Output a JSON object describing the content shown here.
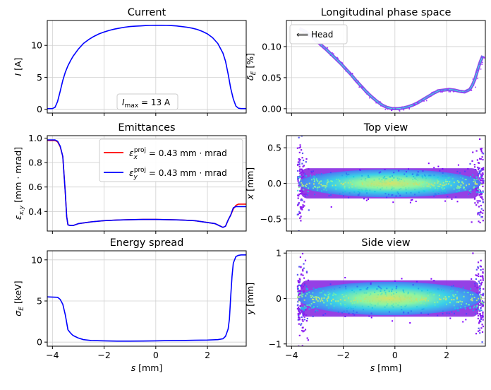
{
  "chart_data": [
    {
      "id": "current",
      "type": "line",
      "title": "Current",
      "ylabel": "I [A]",
      "xlabel": "",
      "xlim": [
        -4.2,
        3.5
      ],
      "ylim": [
        -0.6,
        13.9
      ],
      "xticks": [
        -4,
        -2,
        0,
        2
      ],
      "yticks": [
        0,
        5,
        10
      ],
      "show_xtick_labels": false,
      "grid": true,
      "annotation": "I_max = 13 A",
      "series": [
        {
          "color": "#0000ff",
          "x": [
            -4.2,
            -4.0,
            -3.9,
            -3.8,
            -3.7,
            -3.6,
            -3.5,
            -3.4,
            -3.3,
            -3.2,
            -3.0,
            -2.8,
            -2.6,
            -2.4,
            -2.2,
            -2.0,
            -1.8,
            -1.6,
            -1.4,
            -1.2,
            -1.0,
            -0.8,
            -0.6,
            -0.4,
            -0.2,
            0.0,
            0.2,
            0.4,
            0.6,
            0.8,
            1.0,
            1.2,
            1.4,
            1.6,
            1.8,
            2.0,
            2.2,
            2.4,
            2.6,
            2.7,
            2.8,
            2.9,
            3.0,
            3.1,
            3.2,
            3.3,
            3.4,
            3.5
          ],
          "y": [
            0.1,
            0.1,
            0.3,
            1.2,
            2.8,
            4.5,
            5.8,
            6.8,
            7.6,
            8.3,
            9.4,
            10.3,
            10.9,
            11.4,
            11.8,
            12.1,
            12.35,
            12.55,
            12.7,
            12.85,
            12.95,
            13.0,
            13.05,
            13.1,
            13.13,
            13.15,
            13.15,
            13.13,
            13.1,
            13.05,
            12.95,
            12.85,
            12.7,
            12.5,
            12.2,
            11.8,
            11.2,
            10.3,
            8.8,
            7.5,
            5.5,
            3.3,
            1.6,
            0.5,
            0.15,
            0.1,
            0.1,
            0.1
          ]
        }
      ]
    },
    {
      "id": "lps",
      "type": "scatter",
      "title": "Longitudinal phase space",
      "ylabel": "δ_E [%]",
      "xlabel": "",
      "xlim": [
        -4.2,
        3.5
      ],
      "ylim": [
        -0.007,
        0.142
      ],
      "xticks": [
        -4,
        -2,
        0,
        2
      ],
      "yticks": [
        0.0,
        0.05,
        0.1
      ],
      "ytick_labels": [
        "0.00",
        "0.05",
        "0.10"
      ],
      "show_xtick_labels": false,
      "grid": true,
      "legend": "⟸ Head",
      "series": [
        {
          "x": [
            -3.7,
            -3.5,
            -3.3,
            -3.1,
            -2.9,
            -2.7,
            -2.5,
            -2.3,
            -2.1,
            -1.9,
            -1.7,
            -1.5,
            -1.3,
            -1.1,
            -0.9,
            -0.7,
            -0.5,
            -0.3,
            -0.1,
            0.1,
            0.3,
            0.5,
            0.7,
            0.9,
            1.1,
            1.3,
            1.5,
            1.7,
            1.9,
            2.1,
            2.3,
            2.5,
            2.7,
            2.9,
            3.0,
            3.1,
            3.2,
            3.3,
            3.4
          ],
          "y": [
            0.129,
            0.125,
            0.119,
            0.112,
            0.104,
            0.097,
            0.089,
            0.081,
            0.073,
            0.064,
            0.055,
            0.045,
            0.036,
            0.027,
            0.019,
            0.012,
            0.006,
            0.002,
            0.0,
            0.0,
            0.001,
            0.003,
            0.006,
            0.01,
            0.015,
            0.02,
            0.025,
            0.029,
            0.03,
            0.031,
            0.03,
            0.028,
            0.027,
            0.031,
            0.038,
            0.048,
            0.062,
            0.075,
            0.085
          ]
        }
      ]
    },
    {
      "id": "emittances",
      "type": "line",
      "title": "Emittances",
      "ylabel": "ε_x,y [mm·mrad]",
      "xlabel": "",
      "xlim": [
        -4.2,
        3.5
      ],
      "ylim": [
        0.24,
        1.02
      ],
      "xticks": [
        -4,
        -2,
        0,
        2
      ],
      "yticks": [
        0.4,
        0.6,
        0.8,
        1.0
      ],
      "ytick_labels": [
        "0.4",
        "0.6",
        "0.8",
        "1.0"
      ],
      "show_xtick_labels": false,
      "grid": true,
      "legend_position": "top-right",
      "series": [
        {
          "name": "ε_x^proj = 0.43 mm·mrad",
          "color": "#ff0000",
          "x": [
            -4.2,
            -3.9,
            -3.8,
            -3.7,
            -3.6,
            -3.5,
            -3.45,
            -3.4,
            -3.3,
            -3.2,
            -3.0,
            -2.5,
            -2.0,
            -1.5,
            -1.0,
            -0.5,
            0.0,
            0.5,
            1.0,
            1.5,
            2.0,
            2.3,
            2.5,
            2.6,
            2.7,
            2.8,
            2.9,
            3.0,
            3.1,
            3.2,
            3.5
          ],
          "y": [
            0.98,
            0.98,
            0.97,
            0.93,
            0.85,
            0.55,
            0.36,
            0.29,
            0.285,
            0.285,
            0.3,
            0.315,
            0.325,
            0.33,
            0.333,
            0.335,
            0.335,
            0.333,
            0.33,
            0.325,
            0.31,
            0.3,
            0.28,
            0.27,
            0.28,
            0.33,
            0.37,
            0.42,
            0.45,
            0.46,
            0.46
          ]
        },
        {
          "name": "ε_y^proj = 0.43 mm·mrad",
          "color": "#0000ff",
          "x": [
            -4.2,
            -3.9,
            -3.8,
            -3.7,
            -3.6,
            -3.5,
            -3.45,
            -3.4,
            -3.3,
            -3.2,
            -3.0,
            -2.5,
            -2.0,
            -1.5,
            -1.0,
            -0.5,
            0.0,
            0.5,
            1.0,
            1.5,
            2.0,
            2.3,
            2.5,
            2.6,
            2.7,
            2.8,
            2.9,
            3.0,
            3.1,
            3.2,
            3.5
          ],
          "y": [
            0.985,
            0.985,
            0.975,
            0.935,
            0.85,
            0.55,
            0.36,
            0.29,
            0.285,
            0.285,
            0.3,
            0.315,
            0.325,
            0.33,
            0.333,
            0.335,
            0.335,
            0.333,
            0.33,
            0.325,
            0.31,
            0.3,
            0.28,
            0.27,
            0.28,
            0.33,
            0.37,
            0.43,
            0.44,
            0.44,
            0.44
          ]
        }
      ]
    },
    {
      "id": "topview",
      "type": "heatmap",
      "title": "Top view",
      "ylabel": "x [mm]",
      "xlabel": "",
      "xlim": [
        -4.2,
        3.5
      ],
      "ylim": [
        -0.67,
        0.67
      ],
      "xticks": [
        -4,
        -2,
        0,
        2
      ],
      "yticks": [
        -0.5,
        0.0,
        0.5
      ],
      "ytick_labels": [
        "−0.5",
        "0.0",
        "0.5"
      ],
      "show_xtick_labels": false,
      "grid": true,
      "beam": {
        "s_min": -3.8,
        "s_max": 3.4,
        "core_half_width": 0.17,
        "head_half_width": 0.62,
        "tail_half_width": 0.58
      }
    },
    {
      "id": "energyspread",
      "type": "line",
      "title": "Energy spread",
      "ylabel": "σ_E [keV]",
      "xlabel": "s [mm]",
      "xlim": [
        -4.2,
        3.5
      ],
      "ylim": [
        -0.5,
        11.1
      ],
      "xticks": [
        -4,
        -2,
        0,
        2
      ],
      "xtick_labels": [
        "−4",
        "−2",
        "0",
        "2"
      ],
      "yticks": [
        0,
        5,
        10
      ],
      "show_xtick_labels": true,
      "grid": true,
      "series": [
        {
          "color": "#0000ff",
          "x": [
            -4.2,
            -3.8,
            -3.7,
            -3.6,
            -3.5,
            -3.4,
            -3.3,
            -3.2,
            -3.0,
            -2.8,
            -2.5,
            -2.0,
            -1.5,
            -1.0,
            -0.5,
            0.0,
            0.5,
            1.0,
            1.5,
            2.0,
            2.4,
            2.6,
            2.7,
            2.8,
            2.85,
            2.9,
            2.95,
            3.0,
            3.1,
            3.2,
            3.3,
            3.5
          ],
          "y": [
            5.5,
            5.45,
            5.2,
            4.6,
            3.3,
            1.5,
            1.1,
            0.8,
            0.5,
            0.3,
            0.2,
            0.15,
            0.12,
            0.12,
            0.13,
            0.15,
            0.18,
            0.2,
            0.22,
            0.25,
            0.3,
            0.4,
            0.7,
            1.6,
            2.8,
            5.5,
            8.0,
            9.6,
            10.4,
            10.55,
            10.6,
            10.6
          ]
        }
      ]
    },
    {
      "id": "sideview",
      "type": "heatmap",
      "title": "Side view",
      "ylabel": "y [mm]",
      "xlabel": "s [mm]",
      "xlim": [
        -4.2,
        3.5
      ],
      "ylim": [
        -1.05,
        1.05
      ],
      "xticks": [
        -4,
        -2,
        0,
        2
      ],
      "xtick_labels": [
        "−4",
        "−2",
        "0",
        "2"
      ],
      "yticks": [
        -1,
        0,
        1
      ],
      "ytick_labels": [
        "−1",
        "0",
        "1"
      ],
      "show_xtick_labels": true,
      "grid": true,
      "beam": {
        "s_min": -3.8,
        "s_max": 3.4,
        "core_half_width": 0.32,
        "head_half_width": 0.92,
        "tail_half_width": 0.95
      }
    }
  ]
}
